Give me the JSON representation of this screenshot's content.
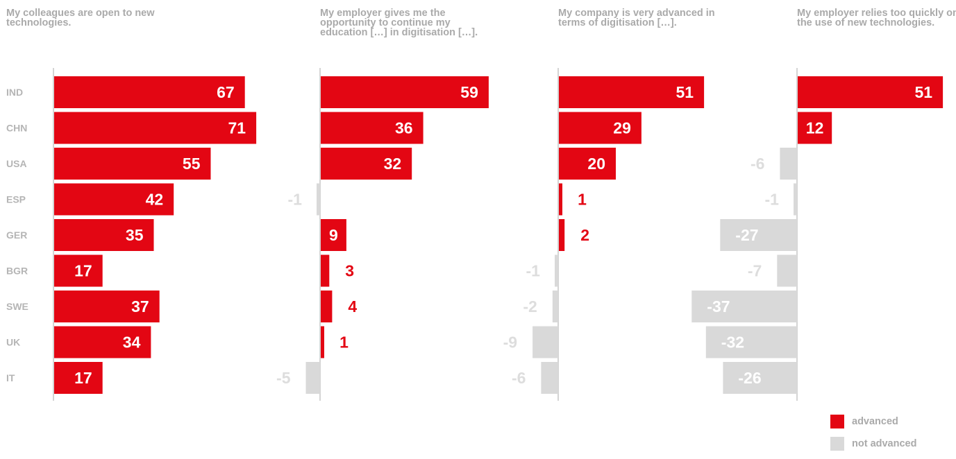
{
  "colors": {
    "advanced": "#e30613",
    "not_advanced": "#d9d9d9",
    "label_muted": "#dddddd",
    "category_text": "#b5b5b5",
    "axis": "#aaaaaa"
  },
  "panels": [
    {
      "title": "My colleagues are open to new technologies."
    },
    {
      "title": "My employer gives me the opportunity to continue my education […] in digitisation […]."
    },
    {
      "title": "My company is very advanced in terms of digitisation […]."
    },
    {
      "title": "My employer relies too quickly on the use of new technologies."
    }
  ],
  "legend": {
    "advanced": "advanced",
    "not_advanced": "not advanced"
  },
  "chart_data": {
    "type": "bar",
    "orientation": "horizontal",
    "categories": [
      "IND",
      "CHN",
      "USA",
      "ESP",
      "GER",
      "BGR",
      "SWE",
      "UK",
      "IT"
    ],
    "series": [
      {
        "values": [
          67,
          71,
          55,
          42,
          35,
          17,
          37,
          34,
          17
        ]
      },
      {
        "values": [
          59,
          36,
          32,
          -1,
          9,
          3,
          4,
          1,
          -5
        ]
      },
      {
        "values": [
          51,
          29,
          20,
          1,
          2,
          -1,
          -2,
          -9,
          -6
        ]
      },
      {
        "values": [
          51,
          12,
          -6,
          -1,
          -27,
          -7,
          -37,
          -32,
          -26
        ]
      }
    ],
    "legend": [
      "advanced",
      "not advanced"
    ],
    "legend_placement": "bottom-right",
    "grid": false
  }
}
